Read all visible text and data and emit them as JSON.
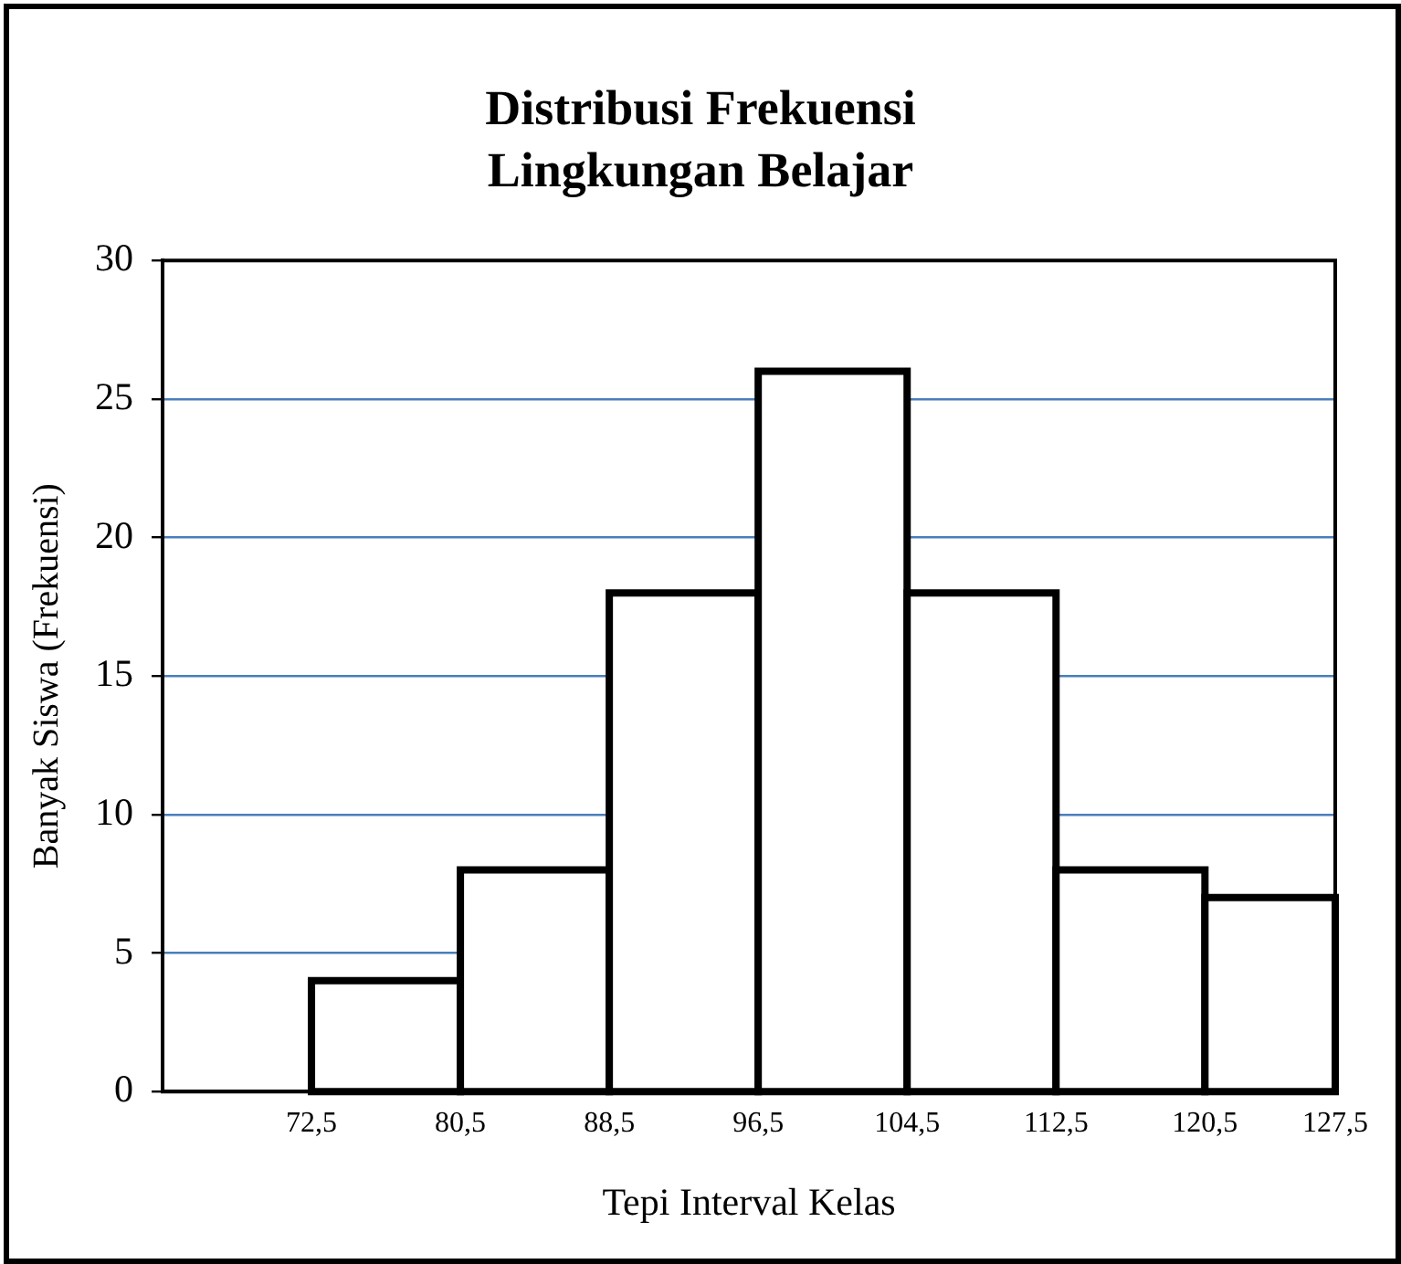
{
  "chart_data": {
    "type": "histogram",
    "title": "Distribusi Frekuensi Lingkungan Belajar",
    "xlabel": "Tepi Interval Kelas",
    "ylabel": "Banyak Siswa (Frekuensi)",
    "bins": [
      72.5,
      80.5,
      88.5,
      96.5,
      104.5,
      112.5,
      120.5,
      127.5
    ],
    "values": [
      4,
      8,
      18,
      26,
      18,
      8,
      7
    ],
    "color": "#ffffff",
    "xlim": [
      64.5,
      127.5
    ],
    "xticks": [
      {
        "value": 72.5,
        "label": "72,5"
      },
      {
        "value": 80.5,
        "label": "80,5"
      },
      {
        "value": 88.5,
        "label": "88,5"
      },
      {
        "value": 96.5,
        "label": "96,5"
      },
      {
        "value": 104.5,
        "label": "104,5"
      },
      {
        "value": 112.5,
        "label": "112,5"
      },
      {
        "value": 120.5,
        "label": "120,5"
      },
      {
        "value": 127.5,
        "label": "127,5"
      }
    ],
    "ylim": [
      0,
      30
    ],
    "yticks": [
      0,
      5,
      10,
      15,
      20,
      25,
      30
    ],
    "grid": "y"
  }
}
